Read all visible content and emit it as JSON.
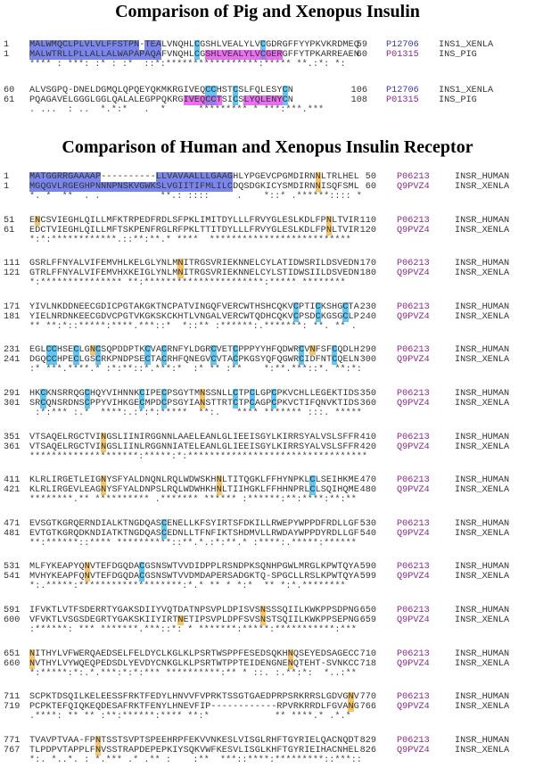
{
  "palette": {
    "b": "#7a86ec",
    "c": "#62c6f2",
    "m": "#ea6ef0",
    "o": "#f7c46a",
    "p": "#9f7ae8"
  },
  "insulin": {
    "title": "Comparison of Pig and Xenopus Insulin",
    "blocks": [
      {
        "rows": [
          {
            "start": "1",
            "seq": "MALWMQCLPLVLVLFFSTPN-TEALVNQHLCGSHLVEALYLVCGDRGFFYYPKVKRDMEQ",
            "end": "59",
            "acc": "P12706",
            "name": "INS1_XENLA",
            "hl": {
              "b": [
                [
                  0,
                  19
                ],
                [
                  21,
                  23
                ]
              ],
              "c": [
                [
                  30,
                  30
                ],
                [
                  42,
                  42
                ]
              ]
            }
          },
          {
            "start": "1",
            "seq": "MALWTRLLPLLALLALWAPAPAQAFVNQHLCGSHLVEALYLVCGERGFFYTPKARREAEN",
            "end": "60",
            "acc": "P01315",
            "name": "INS_PIG",
            "hl": {
              "b": [
                [
                  0,
                  23
                ]
              ],
              "c": [
                [
                  30,
                  30
                ]
              ],
              "m": [
                [
                  32,
                  41
                ],
                [
                  43,
                  45
                ]
              ],
              "p": [
                [
                  42,
                  42
                ]
              ]
            }
          }
        ],
        "cons": "**** : ***: :* : :*  ::*:*****************:***** **.:*: *:"
      },
      {
        "rows": [
          {
            "start": "60",
            "seq": "ALVSGPQ-DNELDGMQLQPQEYQKMKRGIVEQCCHSTCSLFQLESYCN",
            "end": "106",
            "acc": "P12706",
            "name": "INS1_XENLA",
            "hl": {
              "c": [
                [
                  32,
                  33
                ],
                [
                  37,
                  37
                ],
                [
                  46,
                  46
                ]
              ]
            }
          },
          {
            "start": "61",
            "seq": "PQAGAVELGGGLGGLQALALEGPPQKRGIVEQCCTSICSLYQLENYCN",
            "end": "108",
            "acc": "P01315",
            "name": "INS_PIG",
            "hl": {
              "m": [
                [
                  28,
                  31
                ],
                [
                  34,
                  34
                ],
                [
                  39,
                  45
                ]
              ],
              "p": [
                [
                  32,
                  33
                ]
              ],
              "c": [
                [
                  37,
                  37
                ],
                [
                  46,
                  46
                ]
              ]
            }
          }
        ],
        "cons": ". ...  : ..  *.*:*   .  *      ********* * ***:***.***"
      }
    ]
  },
  "receptor": {
    "title": "Comparison of Human and Xenopus Insulin Receptor",
    "blocks": [
      {
        "rows": [
          {
            "start": "1",
            "seq": "MATGGRRGAAAAP----------LLVAVAALLLGAAGHLYPGEVCPGMDIRNNLTRLHEL",
            "end": "50",
            "acc": "P06213",
            "name": "INSR_HUMAN",
            "hl": {
              "b": [
                [
                  0,
                  12
                ],
                [
                  23,
                  36
                ]
              ],
              "o": [
                [
                  52,
                  52
                ]
              ]
            }
          },
          {
            "start": "1",
            "seq": "MGQGVLRGEGHPNNNPNSKVGWKSLVGIITIFMLILCDQSDGKICYSMDIRNNISQFSML",
            "end": "60",
            "acc": "Q9PVZ4",
            "name": "INSR_XENLA",
            "hl": {
              "b": [
                [
                  0,
                  36
                ]
              ],
              "o": [
                [
                  52,
                  52
                ]
              ]
            }
          }
        ],
        "cons": "*. *  **  . .           **.: ::::     .    *::* .******:::: *"
      },
      {
        "rows": [
          {
            "start": "51",
            "seq": "ENCSVIEGHLQILLMFKTRPEDFRDLSFPKLIMITDYLLLFRVYGLESLKDLFPNLTVIR",
            "end": "110",
            "acc": "P06213",
            "name": "INSR_HUMAN",
            "hl": {
              "o": [
                [
                  1,
                  1
                ],
                [
                  54,
                  54
                ]
              ]
            }
          },
          {
            "start": "61",
            "seq": "EDCTVIEGHLQILLMFTSKPENFRGLRFPKLTTITDYLLLFRVYGLESLKDLFPNLTVIR",
            "end": "120",
            "acc": "Q9PVZ4",
            "name": "INSR_XENLA",
            "hl": {
              "o": [
                [
                  54,
                  54
                ]
              ]
            }
          }
        ],
        "cons": "*:*:************.::**:**.* ****  **************************"
      },
      {
        "rows": [
          {
            "start": "111",
            "seq": "GSRLFFNYALVIFEMVHLKELGLYNLMNITRGSVRIEKNNELCYLATIDWSRILDSVEDN",
            "end": "170",
            "acc": "P06213",
            "name": "INSR_HUMAN",
            "hl": {
              "o": [
                [
                  27,
                  27
                ]
              ]
            }
          },
          {
            "start": "121",
            "seq": "GTRLFFNYALVIFEMVHXKEIGLYNLMNITRGSVRIEKNNELCYLSTIDWSIILDSVEDN",
            "end": "180",
            "acc": "Q9PVZ4",
            "name": "INSR_XENLA",
            "hl": {
              "o": [
                [
                  27,
                  27
                ]
              ]
            }
          }
        ],
        "cons": "*:*************** **:**********************:***** ********"
      },
      {
        "rows": [
          {
            "start": "171",
            "seq": "YIVLNKDDNEECGDICPGTAKGKTNCPATVINGQFVERCWTHSHCQKVCPTICKSHGCTA",
            "end": "230",
            "acc": "P06213",
            "name": "INSR_HUMAN",
            "hl": {
              "c": [
                [
                  48,
                  48
                ],
                [
                  52,
                  52
                ],
                [
                  57,
                  57
                ]
              ]
            }
          },
          {
            "start": "181",
            "seq": "YIELNRDNKEECGDVCPGTVKGKSKCKHTLVNGALVERCWTQDHCQKVCPSDCKGSGCLP",
            "end": "240",
            "acc": "Q9PVZ4",
            "name": "INSR_XENLA",
            "hl": {
              "c": [
                [
                  48,
                  48
                ],
                [
                  52,
                  52
                ],
                [
                  57,
                  57
                ]
              ]
            }
          }
        ],
        "cons": "** **:*::*****:****.***::*  *::** :******:.*******: **. ** ."
      },
      {
        "rows": [
          {
            "start": "231",
            "seq": "EGLCCHSECLGNCSQPDDPTKCVACRNFYLDGRCVETCPPPYYHFQDWRCVNFSFCQDLH",
            "end": "290",
            "acc": "P06213",
            "name": "INSR_HUMAN",
            "hl": {
              "c": [
                [
                  3,
                  4
                ],
                [
                  8,
                  8
                ],
                [
                  12,
                  12
                ],
                [
                  21,
                  21
                ],
                [
                  24,
                  24
                ],
                [
                  33,
                  33
                ],
                [
                  37,
                  37
                ],
                [
                  49,
                  49
                ],
                [
                  55,
                  55
                ]
              ],
              "o": [
                [
                  11,
                  11
                ],
                [
                  51,
                  51
                ]
              ]
            }
          },
          {
            "start": "241",
            "seq": "DGQCCHPECLGSCRKPNDPSECTACRHFQNEGVCVTACPKGSYQFQGWRCIDFNTCQELN",
            "end": "300",
            "acc": "Q9PVZ4",
            "name": "INSR_XENLA",
            "hl": {
              "c": [
                [
                  3,
                  4
                ],
                [
                  8,
                  8
                ],
                [
                  12,
                  12
                ],
                [
                  21,
                  21
                ],
                [
                  24,
                  24
                ],
                [
                  33,
                  33
                ],
                [
                  37,
                  37
                ],
                [
                  49,
                  49
                ],
                [
                  55,
                  55
                ]
              ]
            }
          }
        ],
        "cons": ":* ***.****.* :*:**::*.***:*  :* ** :**    *:**.***::*. **:*:"
      },
      {
        "rows": [
          {
            "start": "291",
            "seq": "HKCKNSRRQGCHQYVIHNNKCIPECPSGYTMNSSNLLCTPCLGPCPKVCHLLEGEKTIDS",
            "end": "350",
            "acc": "P06213",
            "name": "INSR_HUMAN",
            "hl": {
              "c": [
                [
                  2,
                  2
                ],
                [
                  10,
                  10
                ],
                [
                  20,
                  20
                ],
                [
                  24,
                  24
                ],
                [
                  37,
                  37
                ],
                [
                  40,
                  40
                ],
                [
                  44,
                  44
                ]
              ],
              "o": [
                [
                  31,
                  31
                ]
              ]
            }
          },
          {
            "start": "301",
            "seq": "SRCQNSRDNSCPPYVIHKGECMPDCPSGYIANSTTRTCTPCAGPCPKVCTIFQNVKTIDS",
            "end": "360",
            "acc": "Q9PVZ4",
            "name": "INSR_XENLA",
            "hl": {
              "c": [
                [
                  2,
                  2
                ],
                [
                  10,
                  10
                ],
                [
                  20,
                  20
                ],
                [
                  24,
                  24
                ],
                [
                  37,
                  37
                ],
                [
                  40,
                  40
                ],
                [
                  44,
                  44
                ]
              ],
              "o": [
                [
                  31,
                  31
                ]
              ]
            }
          }
        ],
        "cons": " :*:*** :.*  ****:.:*:*:*****  **:.   **** ******* :::. *****"
      },
      {
        "rows": [
          {
            "start": "351",
            "seq": "VTSAQELRGCTVINGSLIINIRGGNNLAAELEANLGLIEEISGYLKIRRSYALVSLSFFR",
            "end": "410",
            "acc": "P06213",
            "name": "INSR_HUMAN",
            "hl": {
              "o": [
                [
                  13,
                  13
                ]
              ]
            }
          },
          {
            "start": "361",
            "seq": "VTSAQELRGCTVINGSLIINLRGGNNIATELEANLGLIEEISGYLKIRRSYALVSLSFFR",
            "end": "420",
            "acc": "Q9PVZ4",
            "name": "INSR_XENLA",
            "hl": {
              "o": [
                [
                  13,
                  13
                ]
              ]
            }
          }
        ],
        "cons": "********************:*****:*:*********************************"
      },
      {
        "rows": [
          {
            "start": "411",
            "seq": "KLRLIRGETLEIGNYSFYALDNQNLRQLWDWSKHNLTITQGKLFFHYNPKLCLSEIHKME",
            "end": "470",
            "acc": "P06213",
            "name": "INSR_HUMAN",
            "hl": {
              "o": [
                [
                  13,
                  13
                ],
                [
                  34,
                  34
                ]
              ],
              "c": [
                [
                  51,
                  51
                ]
              ]
            }
          },
          {
            "start": "421",
            "seq": "KLRLIRGEVLEAGNYSFYALDNPSLRQLWDWHKHNLTIIHGKLFFHHNPRLCLSQIHQME",
            "end": "480",
            "acc": "Q9PVZ4",
            "name": "INSR_XENLA",
            "hl": {
              "o": [
                [
                  13,
                  13
                ],
                [
                  34,
                  34
                ]
              ],
              "c": [
                [
                  51,
                  51
                ]
              ]
            }
          }
        ],
        "cons": "********.** ********** .******* ****** :******:**:****:**:**"
      },
      {
        "rows": [
          {
            "start": "471",
            "seq": "EVSGTKGRQERNDIALKTNGDQASCENELLKFSYIRTSFDKILLRWEPYWPPDFRDLLGF",
            "end": "530",
            "acc": "P06213",
            "name": "INSR_HUMAN",
            "hl": {
              "c": [
                [
                  24,
                  24
                ]
              ]
            }
          },
          {
            "start": "481",
            "seq": "EVTGTKGRQDKNDIATKTNGDQASCEDNLLTFNFIKTSHDMVLLRWDAYWPPDYRDLLGF",
            "end": "540",
            "acc": "Q9PVZ4",
            "name": "INSR_XENLA",
            "hl": {
              "c": [
                [
                  24,
                  24
                ]
              ]
            }
          }
        ],
        "cons": "**:******::**** **********::**.*.:*:**.* :****:.*****:******"
      },
      {
        "rows": [
          {
            "start": "531",
            "seq": "MLFYKEAPYQNVTEFDGQDACGSNSWTVVDIDPPLRSNDPKSQNHPGWLMRGLKPWTQYA",
            "end": "590",
            "acc": "P06213",
            "name": "INSR_HUMAN",
            "hl": {
              "o": [
                [
                  10,
                  10
                ]
              ],
              "c": [
                [
                  20,
                  20
                ]
              ]
            }
          },
          {
            "start": "541",
            "seq": "MVHYKEAPFQNVTEFDGQDACGSNSWTVVDMDAPERSADGKTQ-SPGCLLRSLKPWTQYA",
            "end": "599",
            "acc": "Q9PVZ4",
            "name": "INSR_XENLA",
            "hl": {
              "o": [
                [
                  10,
                  10
                ]
              ],
              "c": [
                [
                  20,
                  20
                ]
              ]
            }
          }
        ],
        "cons": "*:.*****:*******************:*.* ** * *:*  ** *:*.********"
      },
      {
        "rows": [
          {
            "start": "591",
            "seq": "IFVKTLVTFSDERRTYGAKSDIIYVQTDATNPSVPLDPISVSNSSSQIILKWKPPSDPNG",
            "end": "650",
            "acc": "P06213",
            "name": "INSR_HUMAN",
            "hl": {
              "o": [
                [
                  42,
                  42
                ]
              ]
            }
          },
          {
            "start": "600",
            "seq": "VFVKTLVSGSDEGRTYGAKSKIIYIRTNETIPSVPLDPFSVSNSTSQIILKWKPPSEPNG",
            "end": "659",
            "acc": "Q9PVZ4",
            "name": "INSR_XENLA",
            "hl": {
              "o": [
                [
                  27,
                  27
                ],
                [
                  42,
                  42
                ]
              ]
            }
          }
        ],
        "cons": ":******: *** *******.***::*: * *******:*****:***********:***"
      },
      {
        "rows": [
          {
            "start": "651",
            "seq": "NITHYLVFWERQAEDSELFELDYCLKGLKLPSRTWSPPFESEDSQKHNQSEYEDSAGECC",
            "end": "710",
            "acc": "P06213",
            "name": "INSR_HUMAN",
            "hl": {
              "o": [
                [
                  0,
                  0
                ],
                [
                  47,
                  47
                ]
              ]
            }
          },
          {
            "start": "660",
            "seq": "NVTHYLVYWQEQPEDSDLYEVDYCNKGLKLPSRTWTPPTEIDENGNENQTEHT-SVNKCC",
            "end": "718",
            "acc": "Q9PVZ4",
            "name": "INSR_XENLA",
            "hl": {
              "o": [
                [
                  0,
                  0
                ],
                [
                  47,
                  47
                ]
              ]
            }
          }
        ],
        "cons": "*:*****:*:.*.***:*:*:*** **********:** * ::. :.**:*:  *..:**"
      },
      {
        "rows": [
          {
            "start": "711",
            "seq": "SCPKTDSQILKELEESSFRKTFEDYLHNVVFVPRKTSSGTGAEDPRPSRKRRSLGDVGNV",
            "end": "770",
            "acc": "P06213",
            "name": "INSR_HUMAN",
            "hl": {
              "o": [
                [
                  58,
                  58
                ]
              ]
            }
          },
          {
            "start": "719",
            "seq": "PCPKTEFQIQKEQDESAFRKTFENYLHNEVFIP------------RPVRKRRDLFGVANG",
            "end": "766",
            "acc": "Q9PVZ4",
            "name": "INSR_XENLA",
            "hl": {
              "o": [
                [
                  58,
                  58
                ]
              ]
            }
          }
        ],
        "cons": ".****: ** ** :**:******:**** **:*            ** ****.* .*.*"
      },
      {
        "rows": [
          {
            "start": "771",
            "seq": "TVAVPTVAA-FPNTSSTSVPTSPEEHRPFEKVVNKESLVISGLRHFTGYRIELQACNQDT",
            "end": "829",
            "acc": "P06213",
            "name": "INSR_HUMAN",
            "hl": {
              "o": [
                [
                  12,
                  12
                ]
              ]
            }
          },
          {
            "start": "767",
            "seq": "TLPDPVTAPPLFNVSSTRAPDEPEPKIYSQKVWFKESVLISGLKHFTGYRIEIHACNHEL",
            "end": "826",
            "acc": "Q9PVZ4",
            "name": "INSR_XENLA",
            "hl": {
              "o": [
                [
                  12,
                  12
                ]
              ]
            }
          }
        ],
        "cons": "*:. *..*. : *.*** .* .** :    :**  ***::****:*********::***::"
      }
    ]
  }
}
